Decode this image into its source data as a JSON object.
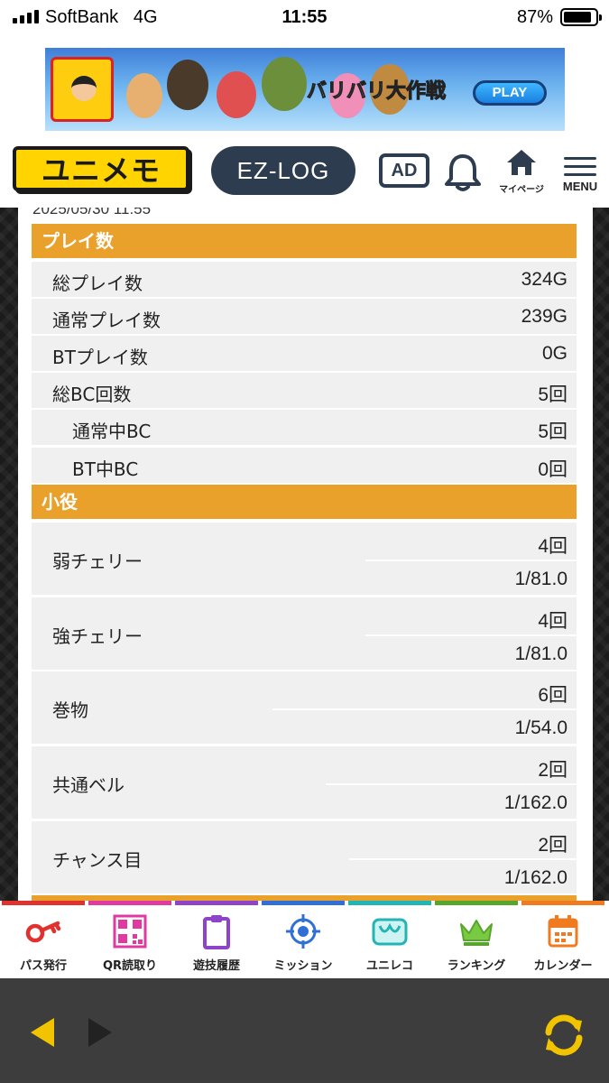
{
  "status_bar": {
    "carrier": "SoftBank",
    "network": "4G",
    "time": "11:55",
    "battery_pct": "87%",
    "battery_level": 0.87
  },
  "banner": {
    "title": "バリバリ大作戦",
    "play_label": "PLAY"
  },
  "header": {
    "logo_text": "ユニメモ",
    "ezlog_label": "EZ-LOG",
    "ad_label": "AD",
    "mypage_label": "マイページ",
    "menu_label": "MENU"
  },
  "content": {
    "timestamp": "2025/05/30 11:55",
    "play_section": {
      "title": "プレイ数",
      "rows": [
        {
          "label": "総プレイ数",
          "value": "324G",
          "indent": false
        },
        {
          "label": "通常プレイ数",
          "value": "239G",
          "indent": false
        },
        {
          "label": "BTプレイ数",
          "value": "0G",
          "indent": false
        },
        {
          "label": "総BC回数",
          "value": "5回",
          "indent": false
        },
        {
          "label": "通常中BC",
          "value": "5回",
          "indent": true
        },
        {
          "label": "BT中BC",
          "value": "0回",
          "indent": true
        }
      ]
    },
    "yaku_section": {
      "title": "小役",
      "rows": [
        {
          "label": "弱チェリー",
          "count": "4回",
          "rate": "1/81.0"
        },
        {
          "label": "強チェリー",
          "count": "4回",
          "rate": "1/81.0"
        },
        {
          "label": "巻物",
          "count": "6回",
          "rate": "1/54.0"
        },
        {
          "label": "共通ベル",
          "count": "2回",
          "rate": "1/162.0"
        },
        {
          "label": "チャンス目",
          "count": "2回",
          "rate": "1/162.0"
        }
      ]
    }
  },
  "bottom_nav": [
    {
      "label": "パス発行",
      "icon": "key-icon",
      "color": "#e0312f"
    },
    {
      "label": "QR読取り",
      "icon": "qr-code-icon",
      "color": "#e03aa0"
    },
    {
      "label": "遊技履歴",
      "icon": "clipboard-icon",
      "color": "#8e44c9"
    },
    {
      "label": "ミッション",
      "icon": "target-icon",
      "color": "#2f6fd6"
    },
    {
      "label": "ユニレコ",
      "icon": "unireco-icon",
      "color": "#21b5b5"
    },
    {
      "label": "ランキング",
      "icon": "crown-icon",
      "color": "#55a62a"
    },
    {
      "label": "カレンダー",
      "icon": "calendar-icon",
      "color": "#f07a1f"
    }
  ],
  "browser_bar": {
    "back_icon": "back-arrow-icon",
    "forward_icon": "forward-arrow-icon",
    "reload_icon": "reload-icon"
  }
}
